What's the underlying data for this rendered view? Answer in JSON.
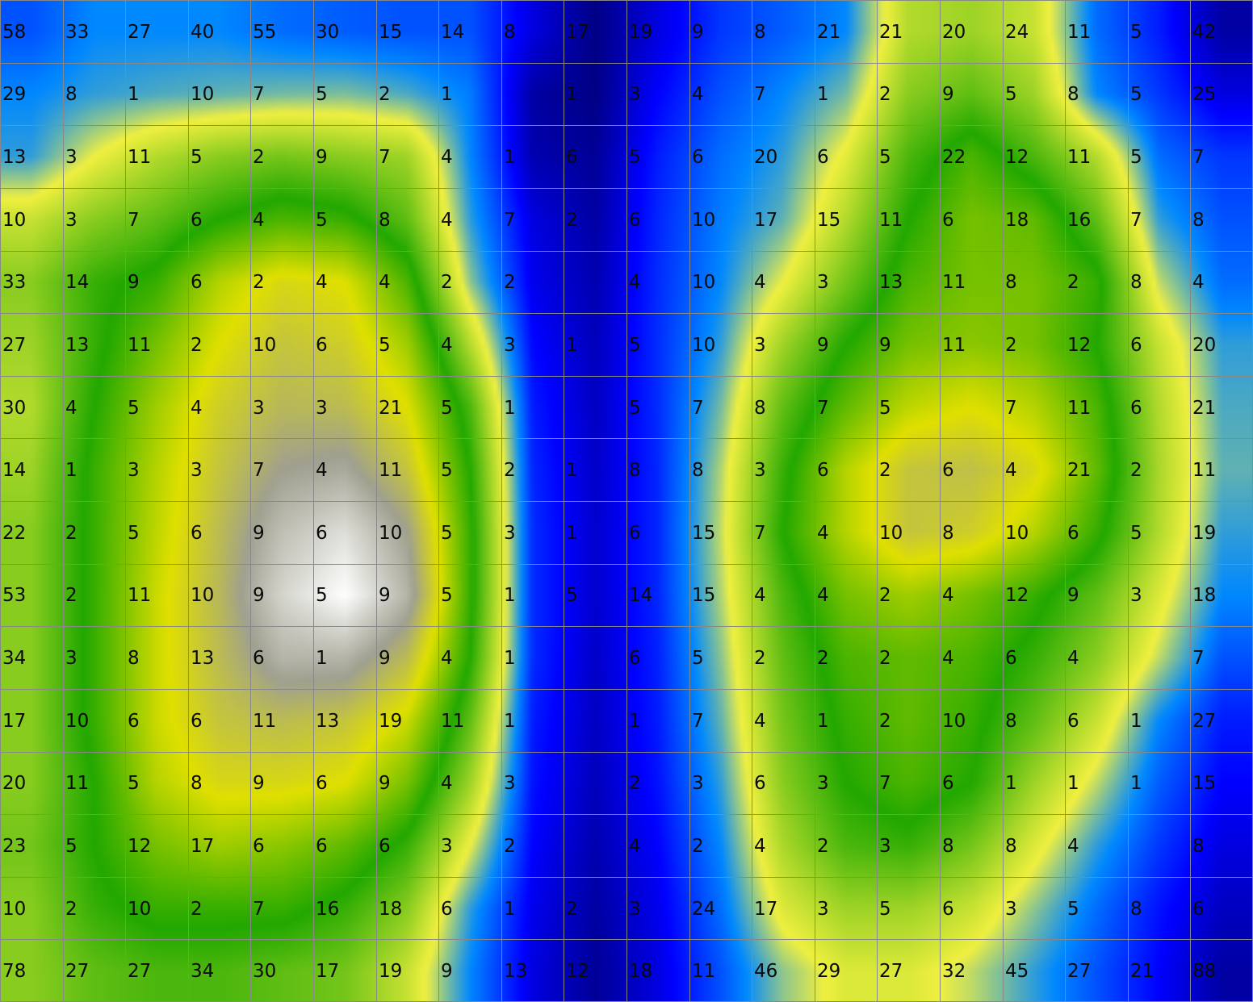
{
  "chart_data": {
    "type": "heatmap",
    "rows": 16,
    "cols": 20,
    "intensity_levels": [
      [
        0.4,
        0.5,
        0.5,
        0.5,
        0.45,
        0.42,
        0.4,
        0.4,
        0.2,
        0.05,
        0.2,
        0.35,
        0.42,
        0.5,
        0.9,
        0.95,
        0.85,
        0.45,
        0.3,
        0.1
      ],
      [
        0.5,
        0.55,
        0.58,
        0.6,
        0.62,
        0.63,
        0.58,
        0.48,
        0.1,
        0.05,
        0.25,
        0.4,
        0.5,
        0.62,
        1.0,
        1.1,
        0.95,
        0.5,
        0.35,
        0.2
      ],
      [
        0.55,
        0.75,
        0.9,
        1.0,
        1.05,
        1.0,
        0.95,
        0.5,
        0.12,
        0.08,
        0.3,
        0.45,
        0.55,
        0.78,
        1.15,
        1.35,
        1.15,
        0.9,
        0.45,
        0.35
      ],
      [
        0.85,
        1.0,
        1.1,
        1.25,
        1.35,
        1.3,
        1.1,
        0.55,
        0.2,
        0.1,
        0.32,
        0.48,
        0.6,
        0.9,
        1.25,
        1.45,
        1.4,
        1.1,
        0.55,
        0.4
      ],
      [
        1.0,
        1.2,
        1.3,
        1.6,
        1.75,
        1.7,
        1.35,
        0.65,
        0.22,
        0.12,
        0.33,
        0.5,
        0.75,
        1.05,
        1.35,
        1.45,
        1.45,
        1.3,
        0.7,
        0.45
      ],
      [
        0.95,
        1.2,
        1.45,
        1.7,
        1.85,
        1.8,
        1.55,
        0.9,
        0.26,
        0.14,
        0.33,
        0.55,
        0.95,
        1.25,
        1.45,
        1.5,
        1.45,
        1.25,
        0.85,
        0.55
      ],
      [
        0.9,
        1.25,
        1.55,
        1.8,
        1.92,
        1.9,
        1.7,
        1.15,
        0.3,
        0.15,
        0.33,
        0.62,
        1.1,
        1.4,
        1.62,
        1.7,
        1.6,
        1.35,
        0.9,
        0.58
      ],
      [
        0.95,
        1.3,
        1.6,
        1.85,
        2.05,
        2.1,
        1.85,
        1.25,
        0.32,
        0.16,
        0.32,
        0.68,
        1.2,
        1.6,
        1.85,
        1.88,
        1.75,
        1.4,
        0.92,
        0.6
      ],
      [
        1.0,
        1.3,
        1.62,
        1.9,
        2.2,
        2.35,
        2.05,
        1.3,
        0.33,
        0.17,
        0.32,
        0.7,
        1.25,
        1.6,
        1.85,
        1.8,
        1.6,
        1.3,
        0.9,
        0.55
      ],
      [
        1.0,
        1.3,
        1.65,
        1.92,
        2.3,
        2.5,
        2.15,
        1.3,
        0.33,
        0.17,
        0.32,
        0.68,
        1.15,
        1.45,
        1.55,
        1.45,
        1.3,
        1.1,
        0.8,
        0.5
      ],
      [
        1.0,
        1.3,
        1.65,
        1.9,
        2.15,
        2.15,
        1.9,
        1.25,
        0.33,
        0.16,
        0.31,
        0.64,
        1.1,
        1.35,
        1.4,
        1.35,
        1.2,
        1.0,
        0.7,
        0.4
      ],
      [
        1.0,
        1.3,
        1.65,
        1.85,
        1.9,
        1.85,
        1.65,
        1.1,
        0.3,
        0.15,
        0.3,
        0.6,
        1.05,
        1.3,
        1.4,
        1.3,
        1.1,
        0.85,
        0.5,
        0.3
      ],
      [
        1.0,
        1.25,
        1.6,
        1.75,
        1.75,
        1.7,
        1.45,
        0.95,
        0.28,
        0.14,
        0.28,
        0.55,
        1.0,
        1.25,
        1.35,
        1.25,
        0.95,
        0.7,
        0.42,
        0.25
      ],
      [
        1.05,
        1.25,
        1.45,
        1.55,
        1.5,
        1.4,
        1.2,
        0.75,
        0.25,
        0.12,
        0.25,
        0.5,
        0.92,
        1.15,
        1.2,
        1.05,
        0.8,
        0.55,
        0.35,
        0.2
      ],
      [
        1.0,
        1.2,
        1.3,
        1.3,
        1.3,
        1.2,
        1.0,
        0.55,
        0.22,
        0.1,
        0.22,
        0.45,
        0.8,
        0.95,
        0.95,
        0.85,
        0.65,
        0.45,
        0.28,
        0.15
      ],
      [
        1.0,
        1.1,
        1.15,
        1.15,
        1.1,
        1.05,
        0.85,
        0.5,
        0.2,
        0.08,
        0.2,
        0.4,
        0.65,
        0.8,
        0.8,
        0.7,
        0.55,
        0.4,
        0.25,
        0.1
      ]
    ],
    "cells": [
      [
        "58",
        "33",
        "27",
        "40",
        "55",
        "30",
        "15",
        "14",
        "8",
        "17",
        "19",
        "9",
        "8",
        "21",
        "21",
        "20",
        "24",
        "11",
        "5",
        "42"
      ],
      [
        "29",
        "8",
        "1",
        "10",
        "7",
        "5",
        "2",
        "1",
        "",
        "1",
        "3",
        "4",
        "7",
        "1",
        "2",
        "9",
        "5",
        "8",
        "5",
        "25"
      ],
      [
        "13",
        "3",
        "11",
        "5",
        "2",
        "9",
        "7",
        "4",
        "1",
        "6",
        "5",
        "6",
        "20",
        "6",
        "5",
        "22",
        "12",
        "11",
        "5",
        "7"
      ],
      [
        "10",
        "3",
        "7",
        "6",
        "4",
        "5",
        "8",
        "4",
        "7",
        "2",
        "6",
        "10",
        "17",
        "15",
        "11",
        "6",
        "18",
        "16",
        "7",
        "8"
      ],
      [
        "33",
        "14",
        "9",
        "6",
        "2",
        "4",
        "4",
        "2",
        "2",
        "",
        "4",
        "10",
        "4",
        "3",
        "13",
        "11",
        "8",
        "2",
        "8",
        "4"
      ],
      [
        "27",
        "13",
        "11",
        "2",
        "10",
        "6",
        "5",
        "4",
        "3",
        "1",
        "5",
        "10",
        "3",
        "9",
        "9",
        "11",
        "2",
        "12",
        "6",
        "20"
      ],
      [
        "30",
        "4",
        "5",
        "4",
        "3",
        "3",
        "21",
        "5",
        "1",
        "",
        "5",
        "7",
        "8",
        "7",
        "5",
        "",
        "7",
        "11",
        "6",
        "21"
      ],
      [
        "14",
        "1",
        "3",
        "3",
        "7",
        "4",
        "11",
        "5",
        "2",
        "1",
        "8",
        "8",
        "3",
        "6",
        "2",
        "6",
        "4",
        "21",
        "2",
        "11"
      ],
      [
        "22",
        "2",
        "5",
        "6",
        "9",
        "6",
        "10",
        "5",
        "3",
        "1",
        "6",
        "15",
        "7",
        "4",
        "10",
        "8",
        "10",
        "6",
        "5",
        "19"
      ],
      [
        "53",
        "2",
        "11",
        "10",
        "9",
        "5",
        "9",
        "5",
        "1",
        "5",
        "14",
        "15",
        "4",
        "4",
        "2",
        "4",
        "12",
        "9",
        "3",
        "18"
      ],
      [
        "34",
        "3",
        "8",
        "13",
        "6",
        "1",
        "9",
        "4",
        "1",
        "",
        "6",
        "5",
        "2",
        "2",
        "2",
        "4",
        "6",
        "4",
        "",
        "7"
      ],
      [
        "17",
        "10",
        "6",
        "6",
        "11",
        "13",
        "19",
        "11",
        "1",
        "",
        "1",
        "7",
        "4",
        "1",
        "2",
        "10",
        "8",
        "6",
        "1",
        "27"
      ],
      [
        "20",
        "11",
        "5",
        "8",
        "9",
        "6",
        "9",
        "4",
        "3",
        "",
        "2",
        "3",
        "6",
        "3",
        "7",
        "6",
        "1",
        "1",
        "1",
        "15"
      ],
      [
        "23",
        "5",
        "12",
        "17",
        "6",
        "6",
        "6",
        "3",
        "2",
        "",
        "4",
        "2",
        "4",
        "2",
        "3",
        "8",
        "8",
        "4",
        "",
        "8"
      ],
      [
        "10",
        "2",
        "10",
        "2",
        "7",
        "16",
        "18",
        "6",
        "1",
        "2",
        "3",
        "24",
        "17",
        "3",
        "5",
        "6",
        "3",
        "5",
        "8",
        "6"
      ],
      [
        "78",
        "27",
        "27",
        "34",
        "30",
        "17",
        "19",
        "9",
        "13",
        "12",
        "18",
        "11",
        "46",
        "29",
        "27",
        "32",
        "45",
        "27",
        "21",
        "88"
      ]
    ],
    "colormap_stops": [
      {
        "level": 0.0,
        "color": "#000066"
      },
      {
        "level": 0.25,
        "color": "#0000ff"
      },
      {
        "level": 0.5,
        "color": "#0088ff"
      },
      {
        "level": 0.75,
        "color": "#f0f040"
      },
      {
        "level": 1.25,
        "color": "#22a800"
      },
      {
        "level": 1.7,
        "color": "#e0e000"
      },
      {
        "level": 2.05,
        "color": "#a0a090"
      },
      {
        "level": 2.5,
        "color": "#ffffff"
      }
    ],
    "grid_color": "#888888",
    "grid": true,
    "title": "",
    "xlabel": "",
    "ylabel": ""
  }
}
